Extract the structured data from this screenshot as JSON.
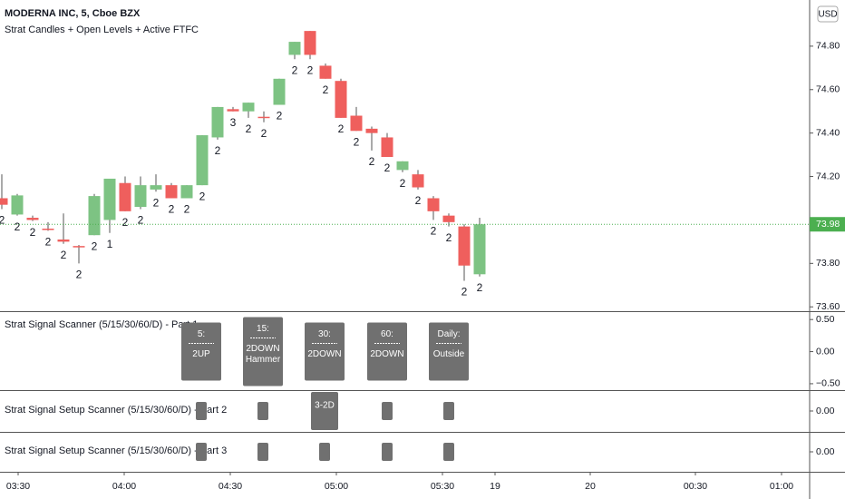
{
  "chart_data": [
    {
      "type": "candlestick",
      "title": "MODERNA INC, 5, Cboe BZX",
      "subtitle": "Strat Candles + Open Levels + Active FTFC",
      "currency": "USD",
      "up_color": "#7dc383",
      "down_color": "#ef5f5d",
      "candles": [
        {
          "open": 74.1,
          "high": 74.21,
          "low": 74.05,
          "close": 74.07,
          "label": "2"
        },
        {
          "open": 74.025,
          "high": 74.12,
          "low": 74.02,
          "close": 74.113,
          "label": "2"
        },
        {
          "open": 74.01,
          "high": 74.02,
          "low": 73.995,
          "close": 74.0,
          "label": "2"
        },
        {
          "open": 73.96,
          "high": 73.99,
          "low": 73.95,
          "close": 73.955,
          "label": "2"
        },
        {
          "open": 73.91,
          "high": 74.03,
          "low": 73.89,
          "close": 73.9,
          "label": "2"
        },
        {
          "open": 73.88,
          "high": 73.885,
          "low": 73.8,
          "close": 73.875,
          "label": "2"
        },
        {
          "open": 73.93,
          "high": 74.12,
          "low": 73.93,
          "close": 74.11,
          "label": "2"
        },
        {
          "open": 74.0,
          "high": 74.19,
          "low": 73.94,
          "close": 74.19,
          "label": "1"
        },
        {
          "open": 74.17,
          "high": 74.2,
          "low": 74.04,
          "close": 74.04,
          "label": "2"
        },
        {
          "open": 74.06,
          "high": 74.2,
          "low": 74.05,
          "close": 74.16,
          "label": "2"
        },
        {
          "open": 74.14,
          "high": 74.21,
          "low": 74.13,
          "close": 74.16,
          "label": "2"
        },
        {
          "open": 74.16,
          "high": 74.17,
          "low": 74.1,
          "close": 74.1,
          "label": "2"
        },
        {
          "open": 74.1,
          "high": 74.16,
          "low": 74.1,
          "close": 74.16,
          "label": "2"
        },
        {
          "open": 74.16,
          "high": 74.39,
          "low": 74.16,
          "close": 74.39,
          "label": "2"
        },
        {
          "open": 74.38,
          "high": 74.52,
          "low": 74.37,
          "close": 74.52,
          "label": "2"
        },
        {
          "open": 74.51,
          "high": 74.52,
          "low": 74.5,
          "close": 74.5,
          "label": "3"
        },
        {
          "open": 74.5,
          "high": 74.54,
          "low": 74.47,
          "close": 74.54,
          "label": "2"
        },
        {
          "open": 74.475,
          "high": 74.5,
          "low": 74.45,
          "close": 74.47,
          "label": "2"
        },
        {
          "open": 74.53,
          "high": 74.65,
          "low": 74.53,
          "close": 74.65,
          "label": "2"
        },
        {
          "open": 74.76,
          "high": 74.82,
          "low": 74.74,
          "close": 74.82,
          "label": "2"
        },
        {
          "open": 74.87,
          "high": 74.87,
          "low": 74.74,
          "close": 74.76,
          "label": "2"
        },
        {
          "open": 74.71,
          "high": 74.72,
          "low": 74.65,
          "close": 74.65,
          "label": "2"
        },
        {
          "open": 74.64,
          "high": 74.65,
          "low": 74.47,
          "close": 74.47,
          "label": "2"
        },
        {
          "open": 74.48,
          "high": 74.52,
          "low": 74.41,
          "close": 74.41,
          "label": "2"
        },
        {
          "open": 74.42,
          "high": 74.43,
          "low": 74.32,
          "close": 74.4,
          "label": "2"
        },
        {
          "open": 74.38,
          "high": 74.4,
          "low": 74.29,
          "close": 74.29,
          "label": "2"
        },
        {
          "open": 74.23,
          "high": 74.27,
          "low": 74.22,
          "close": 74.27,
          "label": "2"
        },
        {
          "open": 74.21,
          "high": 74.23,
          "low": 74.14,
          "close": 74.15,
          "label": "2"
        },
        {
          "open": 74.1,
          "high": 74.11,
          "low": 74.0,
          "close": 74.04,
          "label": "2"
        },
        {
          "open": 74.02,
          "high": 74.03,
          "low": 73.97,
          "close": 73.99,
          "label": "2"
        },
        {
          "open": 73.97,
          "high": 73.98,
          "low": 73.72,
          "close": 73.79,
          "label": "2"
        },
        {
          "open": 73.75,
          "high": 74.01,
          "low": 73.74,
          "close": 73.98,
          "label": "2"
        }
      ],
      "last_price": 73.98,
      "last_color": "#4caf50",
      "ylim": [
        73.58,
        75.0
      ],
      "yticks": [
        {
          "value": 73.6,
          "label": "73.60"
        },
        {
          "value": 73.8,
          "label": "73.80"
        },
        {
          "value": 74.2,
          "label": "74.20"
        },
        {
          "value": 74.4,
          "label": "74.40"
        },
        {
          "value": 74.6,
          "label": "74.60"
        },
        {
          "value": 74.8,
          "label": "74.80"
        }
      ],
      "time_labels": [
        "03:30",
        "04:00",
        "04:30",
        "05:00",
        "05:30",
        "19",
        "20",
        "00:30",
        "01:00"
      ]
    },
    {
      "type": "signal-boxes",
      "title": "Strat Signal Scanner (5/15/30/60/D) - Part 1",
      "ylim": [
        -0.6,
        0.63
      ],
      "yticks": [
        {
          "value": 0.5,
          "label": "0.50"
        },
        {
          "value": 0,
          "label": "0.00"
        },
        {
          "value": -0.5,
          "label": "−0.50"
        }
      ],
      "boxes": [
        [
          "5:",
          "2UP"
        ],
        [
          "15:",
          "2DOWN",
          "Hammer"
        ],
        [
          "30:",
          "2DOWN"
        ],
        [
          "60:",
          "2DOWN"
        ],
        [
          "Daily:",
          "Outside"
        ]
      ]
    },
    {
      "type": "signal-marks",
      "title": "Strat Signal Setup Scanner (5/15/30/60/D) - Part 2",
      "ylim": [
        -0.32,
        0.32
      ],
      "yticks": [
        {
          "value": 0,
          "label": "0.00"
        }
      ],
      "signals": [
        null,
        null,
        "3-2D",
        null,
        null
      ]
    },
    {
      "type": "signal-marks",
      "title": "Strat Signal Setup Scanner (5/15/30/60/D) - Part 3",
      "ylim": [
        -0.31,
        0.31
      ],
      "yticks": [
        {
          "value": 0,
          "label": "0.00"
        }
      ],
      "signals": [
        null,
        null,
        null,
        null,
        null
      ]
    }
  ]
}
